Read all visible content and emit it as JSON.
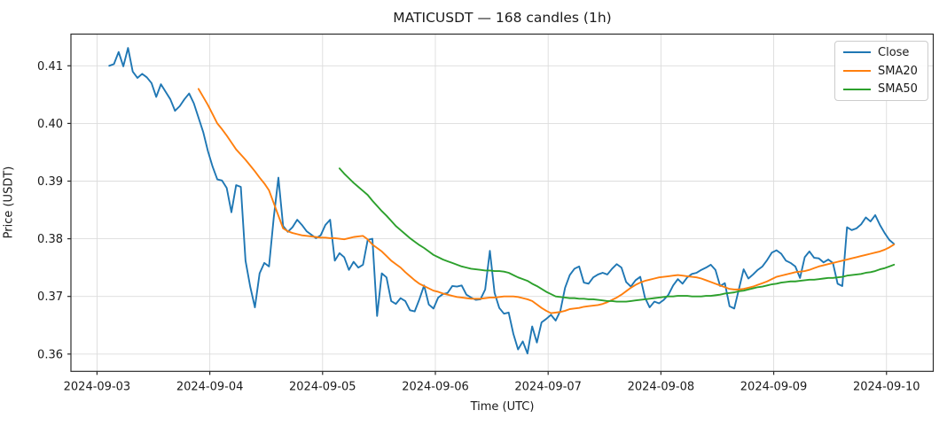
{
  "chart_data": {
    "type": "line",
    "title": "MATICUSDT — 168 candles (1h)",
    "xlabel": "Time (UTC)",
    "ylabel": "Price (USDT)",
    "candle_count": 168,
    "interval": "1h",
    "grid": true,
    "legend_position": "upper right",
    "ylim": [
      0.357,
      0.4155
    ],
    "xlim_hours": [
      -5.55,
      177.95
    ],
    "start_hour": 2.6,
    "y_ticks": [
      {
        "label": "0.36",
        "value": 0.36
      },
      {
        "label": "0.37",
        "value": 0.37
      },
      {
        "label": "0.38",
        "value": 0.38
      },
      {
        "label": "0.39",
        "value": 0.39
      },
      {
        "label": "0.40",
        "value": 0.4
      },
      {
        "label": "0.41",
        "value": 0.41
      }
    ],
    "x_ticks": [
      {
        "label": "2024-09-03",
        "hour": 0
      },
      {
        "label": "2024-09-04",
        "hour": 24
      },
      {
        "label": "2024-09-05",
        "hour": 48
      },
      {
        "label": "2024-09-06",
        "hour": 72
      },
      {
        "label": "2024-09-07",
        "hour": 96
      },
      {
        "label": "2024-09-08",
        "hour": 120
      },
      {
        "label": "2024-09-09",
        "hour": 144
      },
      {
        "label": "2024-09-10",
        "hour": 168
      }
    ],
    "series": [
      {
        "name": "Close",
        "color": "#1f77b4",
        "start_index": 0,
        "values": [
          0.41,
          0.4103,
          0.4124,
          0.4099,
          0.4131,
          0.409,
          0.4079,
          0.4086,
          0.408,
          0.407,
          0.4046,
          0.4068,
          0.4055,
          0.4042,
          0.4022,
          0.403,
          0.4042,
          0.4052,
          0.4035,
          0.401,
          0.3985,
          0.3952,
          0.3925,
          0.3903,
          0.3901,
          0.3888,
          0.3846,
          0.3893,
          0.389,
          0.3762,
          0.3717,
          0.3681,
          0.374,
          0.3758,
          0.3752,
          0.3836,
          0.3906,
          0.3822,
          0.3812,
          0.382,
          0.3833,
          0.3824,
          0.3813,
          0.3807,
          0.3801,
          0.3806,
          0.3824,
          0.3833,
          0.3762,
          0.3775,
          0.3768,
          0.3746,
          0.376,
          0.375,
          0.3755,
          0.3798,
          0.38,
          0.3666,
          0.374,
          0.3733,
          0.3692,
          0.3687,
          0.3697,
          0.3692,
          0.3676,
          0.3674,
          0.3695,
          0.3719,
          0.3686,
          0.3679,
          0.3698,
          0.3704,
          0.3706,
          0.3718,
          0.3717,
          0.3719,
          0.3703,
          0.3698,
          0.3694,
          0.3695,
          0.3712,
          0.3779,
          0.3706,
          0.368,
          0.367,
          0.3672,
          0.3635,
          0.3608,
          0.3622,
          0.3601,
          0.3648,
          0.362,
          0.3655,
          0.3661,
          0.3668,
          0.3658,
          0.3675,
          0.3715,
          0.3737,
          0.3748,
          0.3752,
          0.3724,
          0.3722,
          0.3733,
          0.3738,
          0.3741,
          0.3738,
          0.3748,
          0.3756,
          0.375,
          0.3725,
          0.3717,
          0.3728,
          0.3734,
          0.3698,
          0.3681,
          0.3691,
          0.3688,
          0.3694,
          0.3703,
          0.3719,
          0.373,
          0.3722,
          0.3733,
          0.3739,
          0.3741,
          0.3746,
          0.375,
          0.3755,
          0.3746,
          0.3718,
          0.3723,
          0.3683,
          0.3679,
          0.3713,
          0.3747,
          0.3731,
          0.3738,
          0.3746,
          0.3752,
          0.3763,
          0.3776,
          0.378,
          0.3774,
          0.3762,
          0.3758,
          0.3752,
          0.3732,
          0.3768,
          0.3778,
          0.3767,
          0.3766,
          0.3759,
          0.3764,
          0.3758,
          0.3722,
          0.3718,
          0.382,
          0.3815,
          0.3818,
          0.3825,
          0.3837,
          0.383,
          0.3841,
          0.3824,
          0.381,
          0.3798,
          0.3791
        ]
      },
      {
        "name": "SMA20",
        "color": "#ff7f0e",
        "start_index": 19,
        "values": [
          0.406,
          0.4046,
          0.4032,
          0.4016,
          0.4,
          0.399,
          0.3979,
          0.3967,
          0.3955,
          0.3946,
          0.3937,
          0.3927,
          0.3917,
          0.3906,
          0.3896,
          0.3884,
          0.3862,
          0.384,
          0.3818,
          0.3813,
          0.381,
          0.3808,
          0.3806,
          0.3805,
          0.3804,
          0.3803,
          0.3802,
          0.3802,
          0.3801,
          0.3801,
          0.38,
          0.3799,
          0.3801,
          0.3803,
          0.3804,
          0.3805,
          0.3799,
          0.379,
          0.3784,
          0.3778,
          0.377,
          0.3762,
          0.3756,
          0.375,
          0.3742,
          0.3735,
          0.3728,
          0.3722,
          0.3718,
          0.3714,
          0.371,
          0.3708,
          0.3705,
          0.3703,
          0.3701,
          0.3699,
          0.3698,
          0.3697,
          0.3696,
          0.3696,
          0.3696,
          0.3697,
          0.3698,
          0.3698,
          0.3699,
          0.37,
          0.37,
          0.37,
          0.3699,
          0.3697,
          0.3695,
          0.3692,
          0.3686,
          0.368,
          0.3675,
          0.3671,
          0.3672,
          0.3673,
          0.3675,
          0.3678,
          0.3679,
          0.368,
          0.3682,
          0.3683,
          0.3684,
          0.3685,
          0.3687,
          0.369,
          0.3694,
          0.3698,
          0.3703,
          0.3709,
          0.3715,
          0.372,
          0.3724,
          0.3727,
          0.3729,
          0.3731,
          0.3733,
          0.3734,
          0.3735,
          0.3736,
          0.3737,
          0.3736,
          0.3735,
          0.3734,
          0.3733,
          0.3731,
          0.3728,
          0.3725,
          0.3722,
          0.3719,
          0.3716,
          0.3713,
          0.3712,
          0.3712,
          0.3713,
          0.3715,
          0.3717,
          0.372,
          0.3723,
          0.3726,
          0.373,
          0.3734,
          0.3736,
          0.3738,
          0.374,
          0.3742,
          0.3743,
          0.3744,
          0.3746,
          0.3749,
          0.3752,
          0.3754,
          0.3756,
          0.3758,
          0.376,
          0.3762,
          0.3764,
          0.3766,
          0.3768,
          0.377,
          0.3772,
          0.3774,
          0.3776,
          0.3778,
          0.3781,
          0.3785,
          0.379
        ]
      },
      {
        "name": "SMA50",
        "color": "#2ca02c",
        "start_index": 49,
        "values": [
          0.3922,
          0.3913,
          0.3905,
          0.3897,
          0.389,
          0.3883,
          0.3876,
          0.3866,
          0.3857,
          0.3848,
          0.384,
          0.3831,
          0.3822,
          0.3815,
          0.3808,
          0.3801,
          0.3795,
          0.3789,
          0.3784,
          0.3778,
          0.3772,
          0.3768,
          0.3764,
          0.3761,
          0.3758,
          0.3755,
          0.3752,
          0.375,
          0.3748,
          0.3747,
          0.3746,
          0.3745,
          0.3745,
          0.3744,
          0.3744,
          0.3743,
          0.3741,
          0.3737,
          0.3733,
          0.373,
          0.3727,
          0.3722,
          0.3718,
          0.3713,
          0.3708,
          0.3704,
          0.37,
          0.3699,
          0.3698,
          0.3697,
          0.3697,
          0.3696,
          0.3696,
          0.3695,
          0.3695,
          0.3694,
          0.3693,
          0.3692,
          0.3692,
          0.3691,
          0.3691,
          0.3691,
          0.3692,
          0.3693,
          0.3694,
          0.3695,
          0.3696,
          0.3697,
          0.3698,
          0.3699,
          0.37,
          0.37,
          0.3701,
          0.3701,
          0.3701,
          0.37,
          0.37,
          0.37,
          0.3701,
          0.3701,
          0.3702,
          0.3703,
          0.3705,
          0.3706,
          0.3707,
          0.3709,
          0.371,
          0.3712,
          0.3714,
          0.3716,
          0.3717,
          0.3719,
          0.3721,
          0.3722,
          0.3724,
          0.3725,
          0.3726,
          0.3726,
          0.3727,
          0.3728,
          0.3729,
          0.3729,
          0.373,
          0.3731,
          0.3732,
          0.3732,
          0.3733,
          0.3734,
          0.3736,
          0.3737,
          0.3738,
          0.3739,
          0.3741,
          0.3742,
          0.3744,
          0.3747,
          0.3749,
          0.3752,
          0.3755
        ]
      }
    ],
    "colors": {
      "close": "#1f77b4",
      "sma20": "#ff7f0e",
      "sma50": "#2ca02c",
      "grid": "#dcdcdc",
      "spine": "#2b2b2b",
      "text": "#1a1a1a"
    }
  }
}
